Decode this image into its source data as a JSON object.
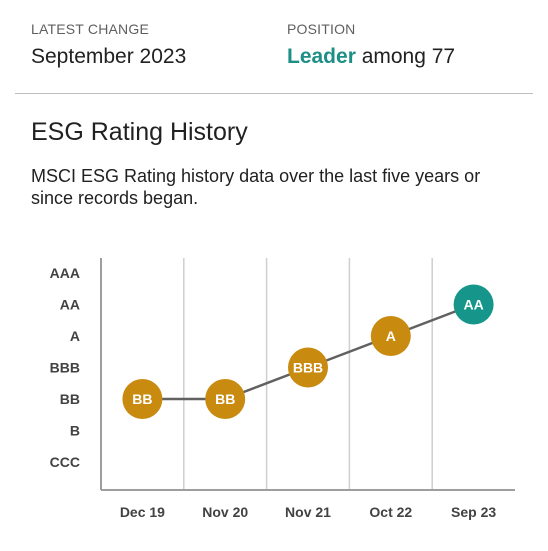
{
  "stats": {
    "latest_change": {
      "label": "LATEST CHANGE",
      "value": "September 2023"
    },
    "position": {
      "label": "POSITION",
      "highlight": "Leader",
      "suffix": " among 77"
    }
  },
  "section": {
    "title": "ESG Rating History",
    "description": "MSCI ESG Rating history data over the last five years or since records began."
  },
  "colors": {
    "accent": "#1e8f86",
    "point_default": "#c98a10",
    "point_latest": "#16968a",
    "line": "#616161",
    "grid": "#cfcfcf"
  },
  "chart_data": {
    "type": "line",
    "title": "",
    "xlabel": "",
    "ylabel": "",
    "x": [
      "Dec 19",
      "Nov 20",
      "Nov 21",
      "Oct 22",
      "Sep 23"
    ],
    "y_categories": [
      "CCC",
      "B",
      "BB",
      "BBB",
      "A",
      "AA",
      "AAA"
    ],
    "series": [
      {
        "values": [
          "BB",
          "BB",
          "BBB",
          "A",
          "AA"
        ]
      }
    ],
    "grid": "vertical",
    "legend": "none"
  }
}
